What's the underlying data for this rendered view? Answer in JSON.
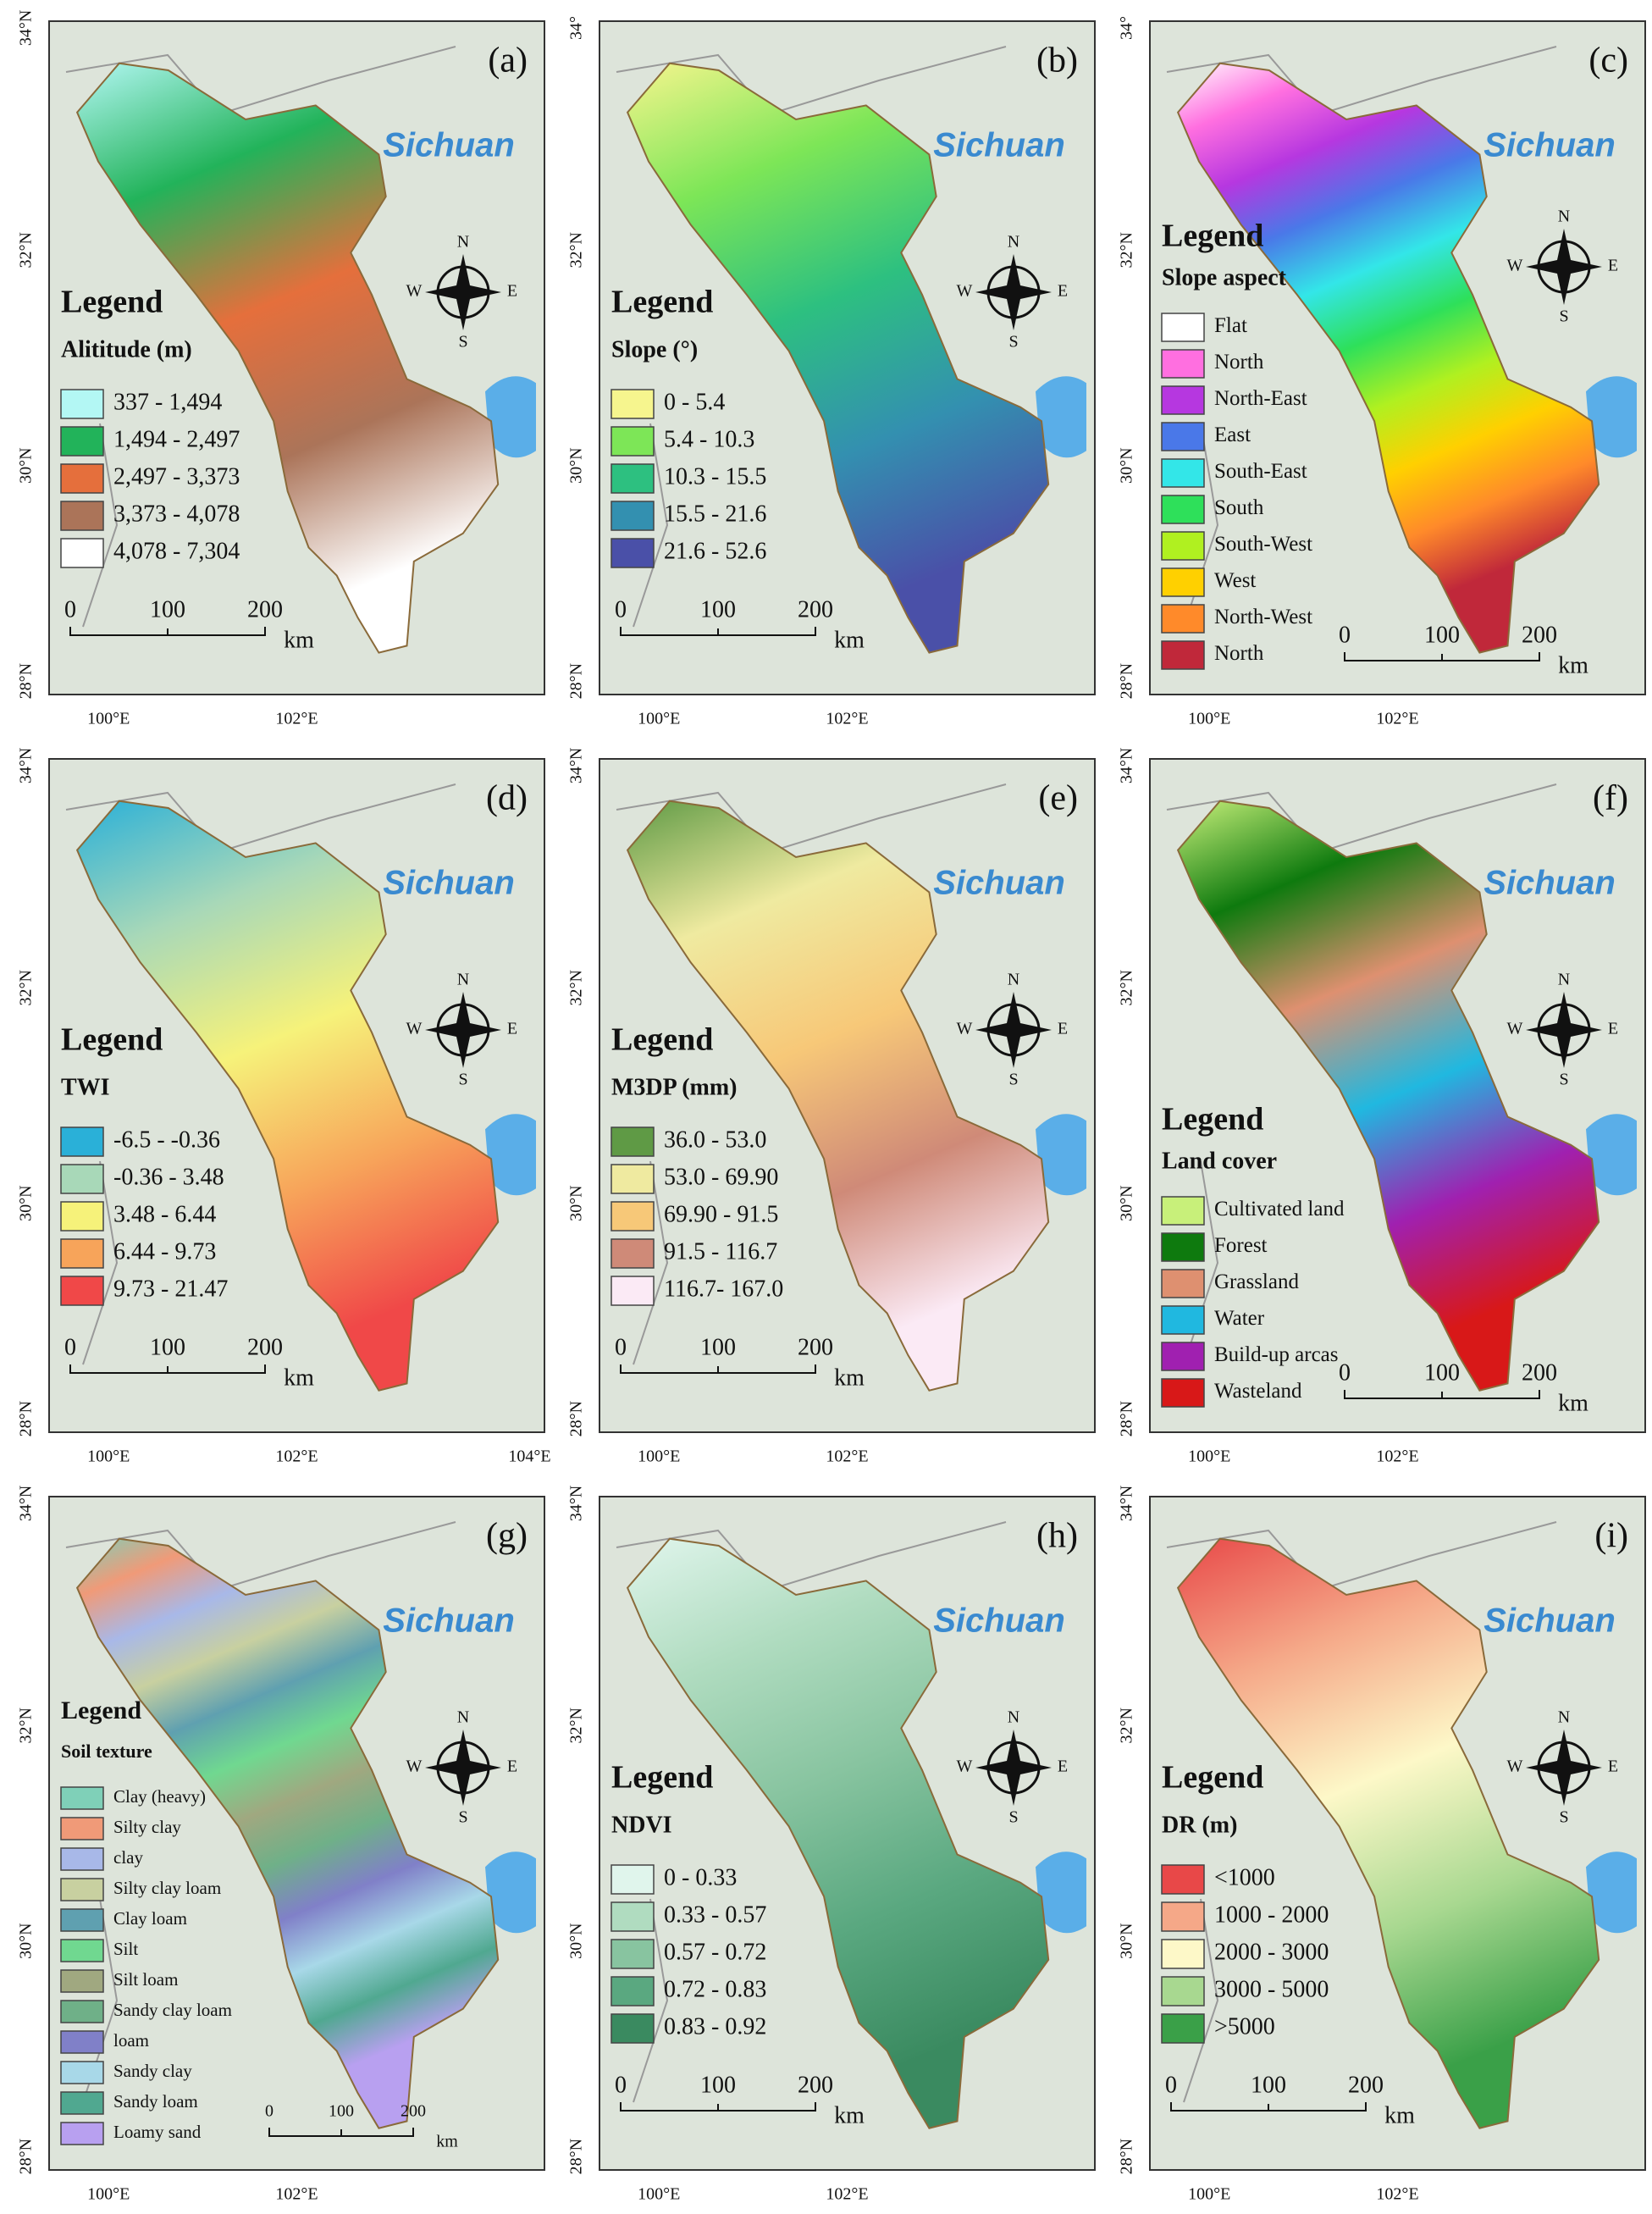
{
  "compass": {
    "n": "N",
    "s": "S",
    "e": "E",
    "w": "W"
  },
  "panels": [
    {
      "label": "(a)",
      "region": "Sichuan",
      "legend_heading": "Legend",
      "legend_title": "Alititude (m)",
      "legend_items": [
        {
          "label": "337 - 1,494",
          "color": "#b3f7f4"
        },
        {
          "label": "1,494 - 2,497",
          "color": "#22b35a"
        },
        {
          "label": "2,497 - 3,373",
          "color": "#e56f3c"
        },
        {
          "label": "3,373 - 4,078",
          "color": "#ab7459"
        },
        {
          "label": "4,078 - 7,304",
          "color": "#ffffff"
        }
      ],
      "scale_labels": [
        "0",
        "100",
        "200"
      ],
      "scale_unit": "km",
      "lat_labels": [
        "34°N",
        "32°N",
        "30°N",
        "28°N"
      ],
      "lon_labels": [
        "100°E",
        "102°E"
      ]
    },
    {
      "label": "(b)",
      "region": "Sichuan",
      "legend_heading": "Legend",
      "legend_title": "Slope (°)",
      "legend_items": [
        {
          "label": "0 - 5.4",
          "color": "#f6f58e"
        },
        {
          "label": "5.4 - 10.3",
          "color": "#7de657"
        },
        {
          "label": "10.3 - 15.5",
          "color": "#2dc080"
        },
        {
          "label": "15.5 - 21.6",
          "color": "#3390b0"
        },
        {
          "label": "21.6 - 52.6",
          "color": "#4a50a8"
        }
      ],
      "scale_labels": [
        "0",
        "100",
        "200"
      ],
      "scale_unit": "km",
      "lat_labels": [
        "34°",
        "32°N",
        "30°N",
        "28°N"
      ],
      "lon_labels": [
        "100°E",
        "102°E"
      ]
    },
    {
      "label": "(c)",
      "region": "Sichuan",
      "legend_heading": "Legend",
      "legend_title": "Slope aspect",
      "legend_items": [
        {
          "label": "Flat",
          "color": "#ffffff"
        },
        {
          "label": "North",
          "color": "#ff6fe0"
        },
        {
          "label": "North-East",
          "color": "#b637e0"
        },
        {
          "label": "East",
          "color": "#4a78e8"
        },
        {
          "label": "South-East",
          "color": "#33e6e8"
        },
        {
          "label": "South",
          "color": "#2ee05a"
        },
        {
          "label": "South-West",
          "color": "#b0f020"
        },
        {
          "label": "West",
          "color": "#ffd000"
        },
        {
          "label": "North-West",
          "color": "#ff8a2a"
        },
        {
          "label": "North",
          "color": "#c0283a"
        }
      ],
      "scale_labels": [
        "0",
        "100",
        "200"
      ],
      "scale_unit": "km",
      "lat_labels": [
        "34°",
        "32°N",
        "30°N",
        "28°N"
      ],
      "lon_labels": [
        "100°E",
        "102°E"
      ]
    },
    {
      "label": "(d)",
      "region": "Sichuan",
      "legend_heading": "Legend",
      "legend_title": "TWI",
      "legend_items": [
        {
          "label": "-6.5 - -0.36",
          "color": "#2ab0d8"
        },
        {
          "label": "-0.36 - 3.48",
          "color": "#a8d8b8"
        },
        {
          "label": "3.48 - 6.44",
          "color": "#f6f27a"
        },
        {
          "label": "6.44 - 9.73",
          "color": "#f7a45a"
        },
        {
          "label": "9.73 - 21.47",
          "color": "#f04848"
        }
      ],
      "scale_labels": [
        "0",
        "100",
        "200"
      ],
      "scale_unit": "km",
      "lat_labels": [
        "34°N",
        "32°N",
        "30°N",
        "28°N"
      ],
      "lon_labels": [
        "100°E",
        "102°E",
        "104°E"
      ]
    },
    {
      "label": "(e)",
      "region": "Sichuan",
      "legend_heading": "Legend",
      "legend_title": "M3DP (mm)",
      "legend_items": [
        {
          "label": "36.0 - 53.0",
          "color": "#5f9a45"
        },
        {
          "label": "53.0 - 69.90",
          "color": "#efeaa0"
        },
        {
          "label": "69.90 - 91.5",
          "color": "#f7c878"
        },
        {
          "label": "91.5 - 116.7",
          "color": "#cf8a78"
        },
        {
          "label": "116.7- 167.0",
          "color": "#fbeaf5"
        }
      ],
      "scale_labels": [
        "0",
        "100",
        "200"
      ],
      "scale_unit": "km",
      "lat_labels": [
        "34°N",
        "32°N",
        "30°N",
        "28°N"
      ],
      "lon_labels": [
        "100°E",
        "102°E"
      ]
    },
    {
      "label": "(f)",
      "region": "Sichuan",
      "legend_heading": "Legend",
      "legend_title": "Land cover",
      "legend_items": [
        {
          "label": "Cultivated land",
          "color": "#c8f07a"
        },
        {
          "label": "Forest",
          "color": "#0e7a0e"
        },
        {
          "label": "Grassland",
          "color": "#de9070"
        },
        {
          "label": "Water",
          "color": "#20b8e0"
        },
        {
          "label": "Build-up arcas",
          "color": "#a020b0"
        },
        {
          "label": "Wasteland",
          "color": "#d81818"
        }
      ],
      "scale_labels": [
        "0",
        "100",
        "200"
      ],
      "scale_unit": "km",
      "lat_labels": [
        "34°N",
        "32°N",
        "30°N",
        "28°N"
      ],
      "lon_labels": [
        "100°E",
        "102°E"
      ]
    },
    {
      "label": "(g)",
      "region": "Sichuan",
      "legend_heading": "Legend",
      "legend_title": "Soil texture",
      "legend_items": [
        {
          "label": "Clay (heavy)",
          "color": "#7fd0b8"
        },
        {
          "label": "Silty clay",
          "color": "#f09a78"
        },
        {
          "label": "clay",
          "color": "#a8b8e8"
        },
        {
          "label": "Silty clay loam",
          "color": "#c8d0a0"
        },
        {
          "label": "Clay loam",
          "color": "#5fa0b0"
        },
        {
          "label": "Silt",
          "color": "#70d890"
        },
        {
          "label": "Silt loam",
          "color": "#a0a880"
        },
        {
          "label": "Sandy clay loam",
          "color": "#6fb088"
        },
        {
          "label": "loam",
          "color": "#8080c8"
        },
        {
          "label": "Sandy clay",
          "color": "#a8d8e8"
        },
        {
          "label": "Sandy loam",
          "color": "#50a890"
        },
        {
          "label": "Loamy sand",
          "color": "#b8a0f0"
        }
      ],
      "scale_labels": [
        "0",
        "100",
        "200"
      ],
      "scale_unit": "km",
      "lat_labels": [
        "34°N",
        "32°N",
        "30°N",
        "28°N"
      ],
      "lon_labels": [
        "100°E",
        "102°E"
      ]
    },
    {
      "label": "(h)",
      "region": "Sichuan",
      "legend_heading": "Legend",
      "legend_title": "NDVI",
      "legend_items": [
        {
          "label": "0 - 0.33",
          "color": "#e0f5ec"
        },
        {
          "label": "0.33 - 0.57",
          "color": "#b0dcc0"
        },
        {
          "label": "0.57 - 0.72",
          "color": "#88c4a0"
        },
        {
          "label": "0.72 - 0.83",
          "color": "#5aa880"
        },
        {
          "label": "0.83 - 0.92",
          "color": "#3a8a60"
        }
      ],
      "scale_labels": [
        "0",
        "100",
        "200"
      ],
      "scale_unit": "km",
      "lat_labels": [
        "34°N",
        "32°N",
        "30°N",
        "28°N"
      ],
      "lon_labels": [
        "100°E",
        "102°E"
      ]
    },
    {
      "label": "(i)",
      "region": "Sichuan",
      "legend_heading": "Legend",
      "legend_title": "DR (m)",
      "legend_items": [
        {
          "label": "<1000",
          "color": "#e84848"
        },
        {
          "label": "1000 - 2000",
          "color": "#f5a888"
        },
        {
          "label": "2000 - 3000",
          "color": "#fdf8c8"
        },
        {
          "label": "3000 - 5000",
          "color": "#a8d890"
        },
        {
          "label": ">5000",
          "color": "#3aa048"
        }
      ],
      "scale_labels": [
        "0",
        "100",
        "200"
      ],
      "scale_unit": "km",
      "lat_labels": [
        "34°N",
        "32°N",
        "30°N",
        "28°N"
      ],
      "lon_labels": [
        "100°E",
        "102°E"
      ]
    }
  ]
}
